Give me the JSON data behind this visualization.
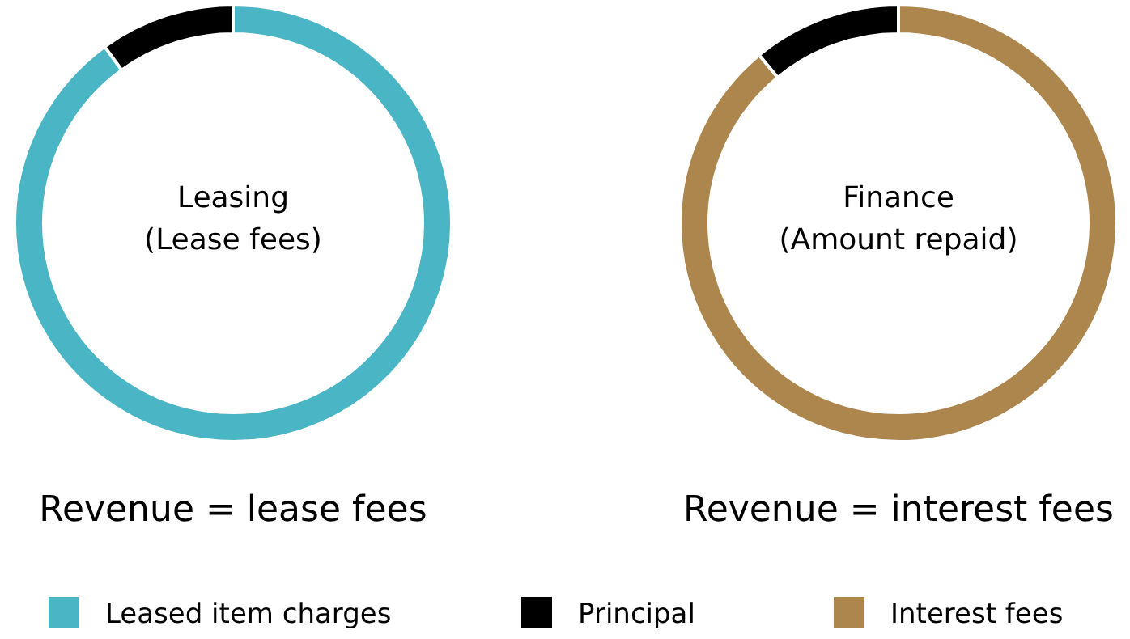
{
  "chart_data": [
    {
      "type": "donut",
      "title": "Leasing",
      "subtitle": "(Lease fees)",
      "categories": [
        "Leased item charges",
        "Principal"
      ],
      "values": [
        90,
        10
      ],
      "colors": [
        "#4ab5c4",
        "#000000"
      ],
      "annotations": [
        "Revenue = lease fees"
      ],
      "legend": "bottom"
    },
    {
      "type": "donut",
      "title": "Finance",
      "subtitle": "(Amount repaid)",
      "categories": [
        "Interest fees",
        null
      ],
      "values": [
        89,
        11
      ],
      "colors": [
        "#ad864e",
        "#000000"
      ],
      "annotations": [
        "Revenue = interest fees"
      ],
      "legend": "bottom"
    }
  ]
}
